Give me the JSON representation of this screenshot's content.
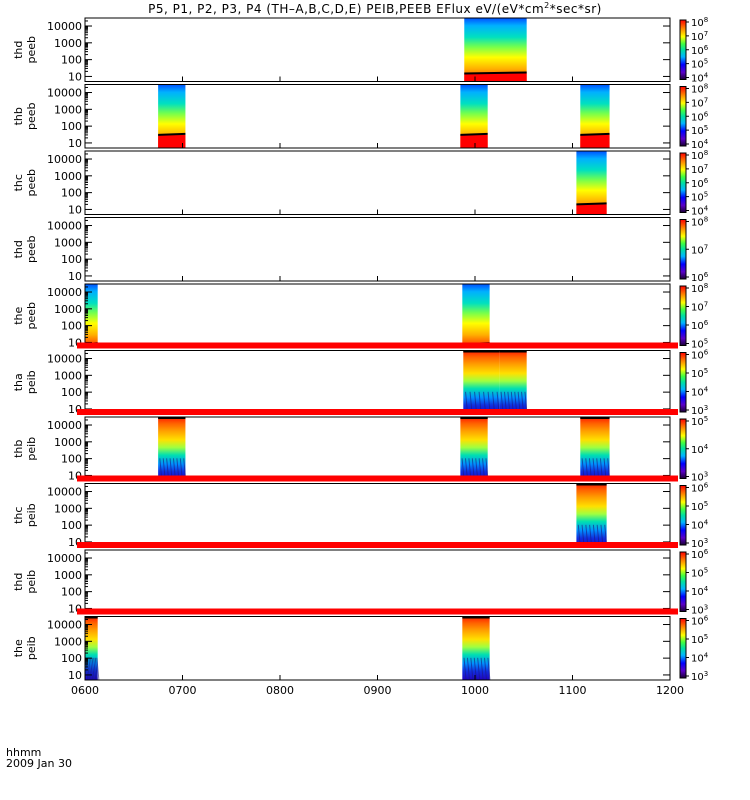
{
  "title": {
    "main": "P5, P1, P2, P3, P4 (TH–A,B,C,D,E) PEIB,PEEB EFlux eV/(eV*cm",
    "sup": "2",
    "tail": "*sec*sr)"
  },
  "footer": {
    "hhmm": "hhmm",
    "date": "2009 Jan 30"
  },
  "colors": {
    "red_bar": "#ff0000",
    "axis": "#000000"
  },
  "chart_data": {
    "type": "heatmap",
    "x_axis": {
      "unit": "hhmm",
      "range": [
        600,
        1200
      ],
      "ticks": [
        600,
        700,
        800,
        900,
        1000,
        1100,
        1200
      ],
      "tick_labels": [
        "0600",
        "0700",
        "0800",
        "0900",
        "1000",
        "1100",
        "1200"
      ]
    },
    "y_axis": {
      "scale": "log",
      "range": [
        5,
        30000
      ],
      "ticks": [
        10,
        100,
        1000,
        10000
      ],
      "tick_labels": [
        "10",
        "100",
        "1000",
        "10000"
      ]
    },
    "panels": [
      {
        "label1": "thd",
        "label2": "peeb",
        "cbar_exp": [
          4,
          8
        ],
        "blocks": [
          {
            "x": [
              989,
              1053
            ],
            "profile": "ee",
            "floor": 15
          }
        ]
      },
      {
        "label1": "thb",
        "label2": "peeb",
        "cbar_exp": [
          4,
          8
        ],
        "blocks": [
          {
            "x": [
              675,
              703
            ],
            "profile": "ee",
            "floor": 30
          },
          {
            "x": [
              985,
              1013
            ],
            "profile": "ee",
            "floor": 30
          },
          {
            "x": [
              1108,
              1138
            ],
            "profile": "ee",
            "floor": 30
          }
        ]
      },
      {
        "label1": "thc",
        "label2": "peeb",
        "cbar_exp": [
          4,
          8
        ],
        "blocks": [
          {
            "x": [
              1104,
              1135
            ],
            "profile": "ee",
            "floor": 20
          }
        ]
      },
      {
        "label1": "thd",
        "label2": "peeb",
        "cbar_exp": [
          6,
          8
        ],
        "blocks": []
      },
      {
        "label1": "the",
        "label2": "peeb",
        "cbar_exp": [
          5,
          8
        ],
        "blocks": [
          {
            "x": [
              600,
              613
            ],
            "profile": "ee",
            "floor": 8
          },
          {
            "x": [
              987,
              1015
            ],
            "profile": "ee",
            "floor": 8
          }
        ]
      },
      {
        "label1": "tha",
        "label2": "peib",
        "cbar_exp": [
          3,
          6
        ],
        "red_bar_above": true,
        "blocks": [
          {
            "x": [
              988,
              1025
            ],
            "profile": "ion"
          },
          {
            "x": [
              1025,
              1053
            ],
            "profile": "ion"
          }
        ]
      },
      {
        "label1": "thb",
        "label2": "peib",
        "cbar_exp": [
          3,
          5
        ],
        "red_bar_above": true,
        "blocks": [
          {
            "x": [
              675,
              703
            ],
            "profile": "ion"
          },
          {
            "x": [
              985,
              1013
            ],
            "profile": "ion"
          },
          {
            "x": [
              1108,
              1138
            ],
            "profile": "ion"
          }
        ]
      },
      {
        "label1": "thc",
        "label2": "peib",
        "cbar_exp": [
          3,
          6
        ],
        "red_bar_above": true,
        "blocks": [
          {
            "x": [
              1104,
              1135
            ],
            "profile": "ion"
          }
        ]
      },
      {
        "label1": "thd",
        "label2": "peib",
        "cbar_exp": [
          3,
          6
        ],
        "red_bar_above": true,
        "blocks": []
      },
      {
        "label1": "the",
        "label2": "peib",
        "cbar_exp": [
          3,
          6
        ],
        "red_bar_above": true,
        "blocks": [
          {
            "x": [
              600,
              613
            ],
            "profile": "ion"
          },
          {
            "x": [
              987,
              1015
            ],
            "profile": "ion"
          }
        ]
      }
    ]
  }
}
